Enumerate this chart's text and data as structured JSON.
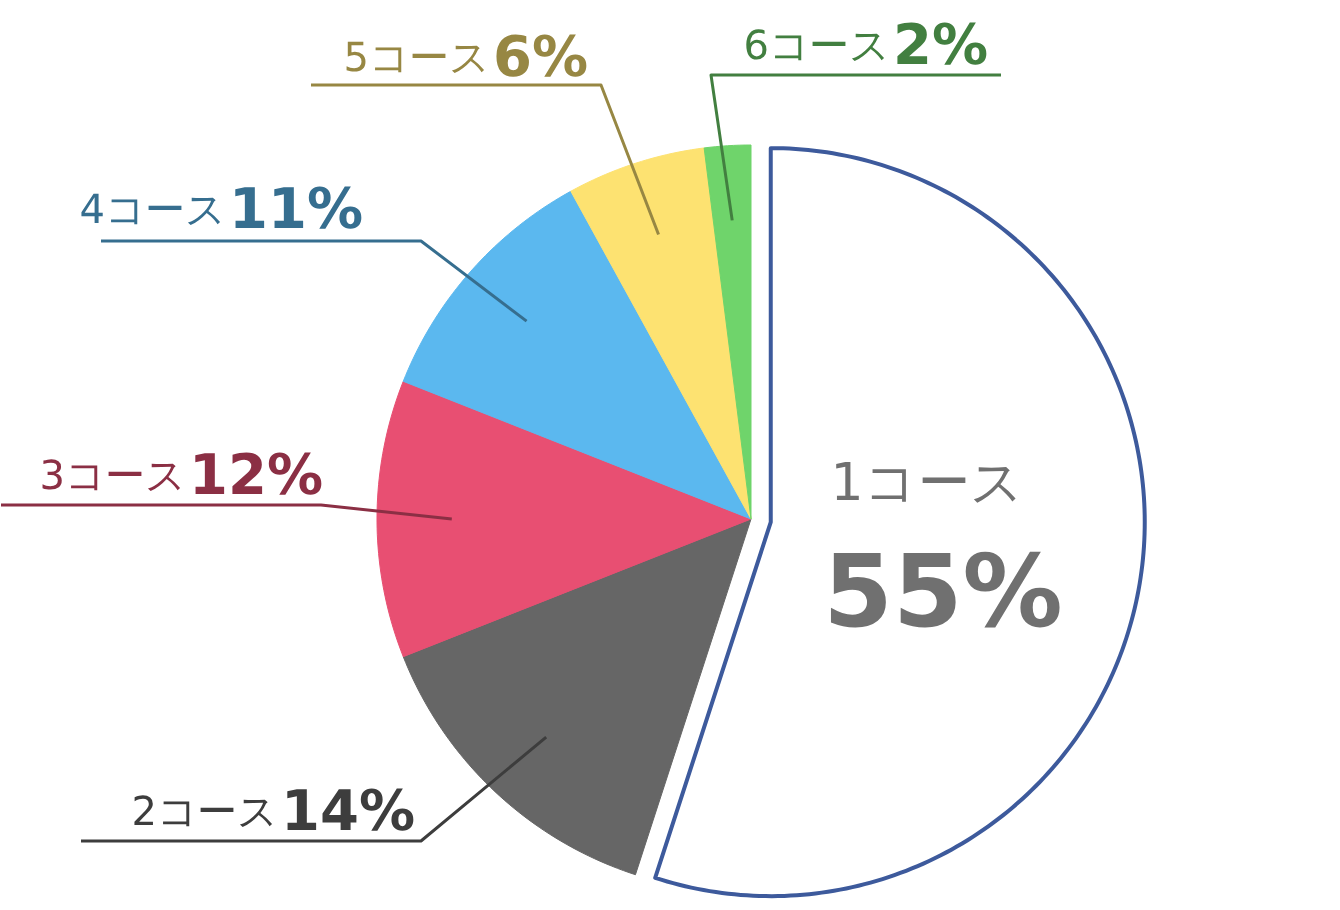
{
  "chart_data": {
    "type": "pie",
    "categories": [
      "1コース",
      "2コース",
      "3コース",
      "4コース",
      "5コース",
      "6コース"
    ],
    "values": [
      55,
      14,
      12,
      11,
      6,
      2
    ],
    "colors": [
      "#ffffff",
      "#666666",
      "#e84f72",
      "#5bb8ef",
      "#fde271",
      "#6fd46b"
    ],
    "value_labels": [
      "55%",
      "14%",
      "12%",
      "11%",
      "6%",
      "2%"
    ],
    "legend": false
  }
}
